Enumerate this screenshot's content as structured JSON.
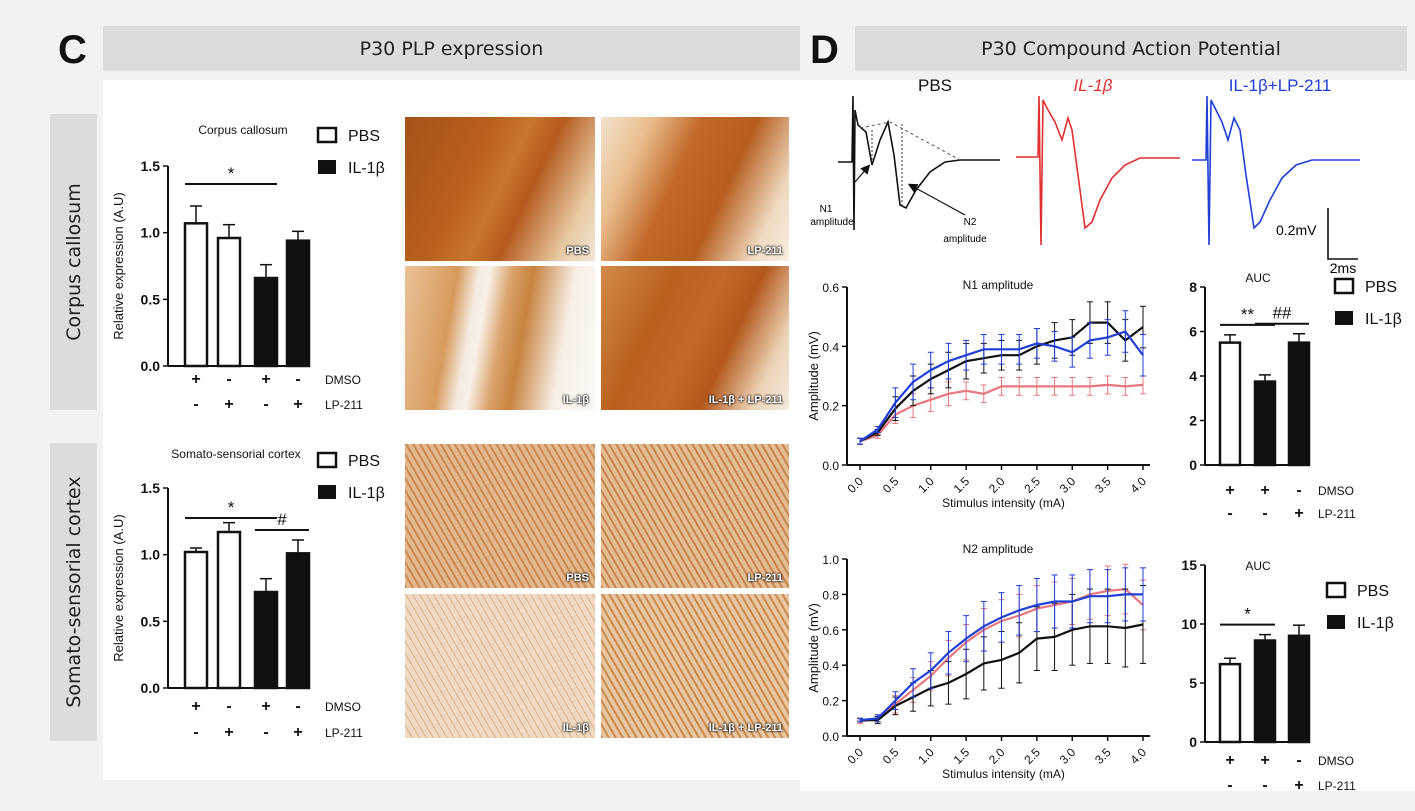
{
  "panels": {
    "c_letter": "C",
    "d_letter": "D",
    "c_title": "P30 PLP expression",
    "d_title": "P30 Compound Action Potential",
    "side_cc": "Corpus callosum",
    "side_sc": "Somato-sensorial cortex"
  },
  "colors": {
    "pbs": "#111111",
    "il1b": "#e8787d",
    "il1b_trace": "#e03030",
    "combo": "#1f3fd6"
  },
  "legend": {
    "pbs": "PBS",
    "il1b": "IL-1β"
  },
  "treat": {
    "dmso": "DMSO",
    "lp": "LP-211",
    "row1": [
      "+",
      "-",
      "+",
      "-"
    ],
    "row2": [
      "-",
      "+",
      "-",
      "+"
    ],
    "auc_row1": [
      "+",
      "+",
      "-"
    ],
    "auc_row2": [
      "-",
      "-",
      "+"
    ]
  },
  "traces": {
    "pbs": "PBS",
    "il1b": "IL-1β",
    "combo": "IL-1β+LP-211",
    "n1": [
      "N1",
      "amplitude"
    ],
    "n2": [
      "N2",
      "amplitude"
    ],
    "scale_v": "0.2mV",
    "scale_t": "2ms"
  },
  "micro_labels": {
    "pbs": "PBS",
    "lp": "LP-211",
    "il1b": "IL-1β",
    "combo": "IL-1β + LP-211"
  },
  "chart_data": [
    {
      "type": "bar",
      "title": "Corpus callosum",
      "ylabel": "Relative expression (A.U)",
      "ylim": [
        0,
        1.5
      ],
      "yticks": [
        "0.0",
        "0.5",
        "1.0",
        "1.5"
      ],
      "values": [
        1.07,
        0.96,
        0.66,
        0.94
      ],
      "errors": [
        0.13,
        0.1,
        0.1,
        0.07
      ],
      "fills": [
        "PBS",
        "PBS",
        "IL-1β",
        "IL-1β"
      ],
      "significance": [
        {
          "label": "*",
          "from": 0,
          "to": 2
        }
      ]
    },
    {
      "type": "bar",
      "title": "Somato-sensorial cortex",
      "ylabel": "Relative expression (A.U)",
      "ylim": [
        0,
        1.5
      ],
      "yticks": [
        "0.0",
        "0.5",
        "1.0",
        "1.5"
      ],
      "values": [
        1.02,
        1.17,
        0.72,
        1.01
      ],
      "errors": [
        0.03,
        0.07,
        0.1,
        0.1
      ],
      "fills": [
        "PBS",
        "PBS",
        "IL-1β",
        "IL-1β"
      ],
      "significance": [
        {
          "label": "*",
          "from": 0,
          "to": 2
        },
        {
          "label": "#",
          "from": 2,
          "to": 3
        }
      ]
    },
    {
      "type": "line",
      "title": "N1 amplitude",
      "xlabel": "Stimulus intensity (mA)",
      "ylabel": "Amplitude (mV)",
      "ylim": [
        0,
        0.6
      ],
      "yticks": [
        "0.0",
        "0.2",
        "0.4",
        "0.6"
      ],
      "x": [
        0.0,
        0.25,
        0.5,
        0.75,
        1.0,
        1.25,
        1.5,
        1.75,
        2.0,
        2.25,
        2.5,
        2.75,
        3.0,
        3.25,
        3.5,
        3.75,
        4.0
      ],
      "xticks": [
        "0.0",
        "0.5",
        "1.0",
        "1.5",
        "2.0",
        "2.5",
        "3.0",
        "3.5",
        "4.0"
      ],
      "series": [
        {
          "color": "#e8787d",
          "values": [
            0.08,
            0.1,
            0.17,
            0.2,
            0.22,
            0.24,
            0.25,
            0.24,
            0.265,
            0.265,
            0.265,
            0.265,
            0.265,
            0.265,
            0.27,
            0.265,
            0.27
          ],
          "errors": [
            0.01,
            0.01,
            0.03,
            0.04,
            0.04,
            0.04,
            0.03,
            0.03,
            0.03,
            0.03,
            0.03,
            0.03,
            0.03,
            0.03,
            0.03,
            0.03,
            0.03
          ]
        },
        {
          "color": "#111111",
          "values": [
            0.08,
            0.11,
            0.19,
            0.25,
            0.29,
            0.32,
            0.35,
            0.36,
            0.37,
            0.37,
            0.4,
            0.42,
            0.43,
            0.48,
            0.48,
            0.42,
            0.465
          ],
          "errors": [
            0.01,
            0.01,
            0.04,
            0.05,
            0.05,
            0.06,
            0.06,
            0.05,
            0.05,
            0.05,
            0.06,
            0.06,
            0.06,
            0.07,
            0.07,
            0.07,
            0.07
          ]
        },
        {
          "color": "#1f3fd6",
          "values": [
            0.08,
            0.12,
            0.21,
            0.28,
            0.32,
            0.35,
            0.37,
            0.39,
            0.39,
            0.39,
            0.41,
            0.4,
            0.38,
            0.42,
            0.43,
            0.45,
            0.37
          ],
          "errors": [
            0.01,
            0.01,
            0.05,
            0.06,
            0.06,
            0.06,
            0.05,
            0.05,
            0.05,
            0.05,
            0.05,
            0.05,
            0.05,
            0.06,
            0.06,
            0.07,
            0.07
          ]
        }
      ]
    },
    {
      "type": "bar",
      "title": "AUC",
      "ylim": [
        0,
        8
      ],
      "yticks": [
        "0",
        "2",
        "4",
        "6",
        "8"
      ],
      "values": [
        5.5,
        3.75,
        5.5
      ],
      "errors": [
        0.35,
        0.3,
        0.4
      ],
      "fills": [
        "PBS",
        "IL-1β",
        "IL-1β"
      ],
      "significance": [
        {
          "label": "**",
          "from": 0,
          "to": 1
        },
        {
          "label": "##",
          "from": 1,
          "to": 2
        }
      ]
    },
    {
      "type": "line",
      "title": "N2 amplitude",
      "xlabel": "Stimulus intensity (mA)",
      "ylabel": "Amplitude (mV)",
      "ylim": [
        0,
        1.0
      ],
      "yticks": [
        "0.0",
        "0.2",
        "0.4",
        "0.6",
        "0.8",
        "1.0"
      ],
      "x": [
        0.0,
        0.25,
        0.5,
        0.75,
        1.0,
        1.25,
        1.5,
        1.75,
        2.0,
        2.25,
        2.5,
        2.75,
        3.0,
        3.25,
        3.5,
        3.75,
        4.0
      ],
      "xticks": [
        "0.0",
        "0.5",
        "1.0",
        "1.5",
        "2.0",
        "2.5",
        "3.0",
        "3.5",
        "4.0"
      ],
      "series": [
        {
          "color": "#e8787d",
          "values": [
            0.08,
            0.1,
            0.18,
            0.26,
            0.34,
            0.44,
            0.53,
            0.6,
            0.65,
            0.68,
            0.72,
            0.74,
            0.76,
            0.8,
            0.82,
            0.83,
            0.74
          ],
          "errors": [
            0.01,
            0.02,
            0.05,
            0.07,
            0.08,
            0.1,
            0.1,
            0.12,
            0.12,
            0.12,
            0.13,
            0.13,
            0.13,
            0.14,
            0.14,
            0.14,
            0.14
          ]
        },
        {
          "color": "#111111",
          "values": [
            0.09,
            0.09,
            0.17,
            0.22,
            0.27,
            0.3,
            0.35,
            0.41,
            0.43,
            0.47,
            0.55,
            0.56,
            0.6,
            0.62,
            0.62,
            0.61,
            0.63
          ],
          "errors": [
            0.01,
            0.02,
            0.05,
            0.08,
            0.1,
            0.12,
            0.14,
            0.15,
            0.16,
            0.17,
            0.18,
            0.19,
            0.2,
            0.21,
            0.21,
            0.22,
            0.22
          ]
        },
        {
          "color": "#1f3fd6",
          "values": [
            0.09,
            0.1,
            0.2,
            0.3,
            0.37,
            0.47,
            0.55,
            0.62,
            0.67,
            0.71,
            0.74,
            0.76,
            0.76,
            0.79,
            0.79,
            0.8,
            0.8
          ],
          "errors": [
            0.01,
            0.02,
            0.05,
            0.08,
            0.1,
            0.12,
            0.13,
            0.14,
            0.14,
            0.14,
            0.15,
            0.15,
            0.15,
            0.15,
            0.15,
            0.15,
            0.15
          ]
        }
      ]
    },
    {
      "type": "bar",
      "title": "AUC",
      "ylim": [
        0,
        15
      ],
      "yticks": [
        "0",
        "5",
        "10",
        "15"
      ],
      "values": [
        6.6,
        8.6,
        9.0
      ],
      "errors": [
        0.5,
        0.5,
        0.9
      ],
      "fills": [
        "PBS",
        "IL-1β",
        "IL-1β"
      ],
      "significance": [
        {
          "label": "*",
          "from": 0,
          "to": 1
        }
      ]
    }
  ]
}
